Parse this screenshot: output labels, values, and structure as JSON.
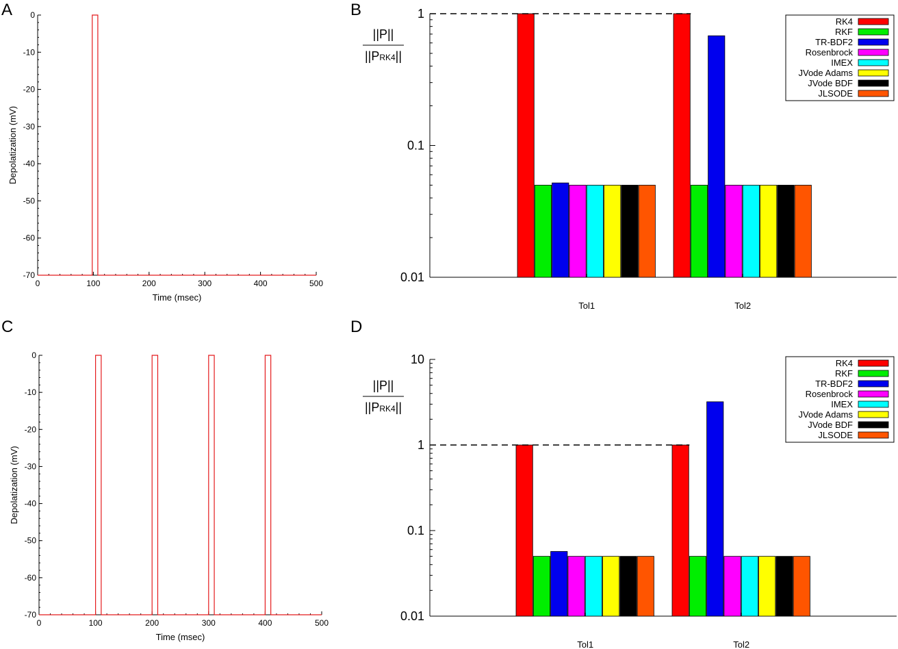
{
  "panels": {
    "A": {
      "letter": "A"
    },
    "B": {
      "letter": "B"
    },
    "C": {
      "letter": "C"
    },
    "D": {
      "letter": "D"
    }
  },
  "chart_data": [
    {
      "id": "A",
      "type": "line",
      "xlabel": "Time (msec)",
      "ylabel": "Depolatization (mV)",
      "xlim": [
        0,
        500
      ],
      "ylim": [
        -70,
        0
      ],
      "xticks": [
        "0",
        "100",
        "200",
        "300",
        "400",
        "500"
      ],
      "yticks": [
        "0",
        "-10",
        "-20",
        "-30",
        "-40",
        "-50",
        "-60",
        "-70"
      ],
      "series_color": "#e41a1c",
      "pulses": [
        [
          98,
          108
        ]
      ],
      "baseline": -70,
      "peak": 0
    },
    {
      "id": "B",
      "type": "bar",
      "yscale": "log",
      "ylim": [
        0.01,
        1
      ],
      "yticks": [
        "0.01",
        "0.1",
        "1"
      ],
      "ylabel_top": "||P||",
      "ylabel_bottom": "||P",
      "ylabel_sub": "RK4",
      "ylabel_end": "||",
      "reference_line": 1,
      "categories": [
        "Tol1",
        "Tol2"
      ],
      "legend_position": "top-right",
      "series": [
        {
          "name": "RK4",
          "color": "#ff0000",
          "values": [
            1.0,
            1.0
          ]
        },
        {
          "name": "RKF",
          "color": "#00ee00",
          "values": [
            0.05,
            0.05
          ]
        },
        {
          "name": "TR-BDF2",
          "color": "#0000ee",
          "values": [
            0.052,
            0.68
          ]
        },
        {
          "name": "Rosenbrock",
          "color": "#ff00ff",
          "values": [
            0.05,
            0.05
          ]
        },
        {
          "name": "IMEX",
          "color": "#00ffff",
          "values": [
            0.05,
            0.05
          ]
        },
        {
          "name": "JVode Adams",
          "color": "#ffff00",
          "values": [
            0.05,
            0.05
          ]
        },
        {
          "name": "JVode BDF",
          "color": "#000000",
          "values": [
            0.05,
            0.05
          ]
        },
        {
          "name": "JLSODE",
          "color": "#ff5500",
          "values": [
            0.05,
            0.05
          ]
        }
      ]
    },
    {
      "id": "C",
      "type": "line",
      "xlabel": "Time (msec)",
      "ylabel": "Depolatization (mV)",
      "xlim": [
        0,
        500
      ],
      "ylim": [
        -70,
        0
      ],
      "xticks": [
        "0",
        "100",
        "200",
        "300",
        "400",
        "500"
      ],
      "yticks": [
        "0",
        "-10",
        "-20",
        "-30",
        "-40",
        "-50",
        "-60",
        "-70"
      ],
      "series_color": "#e41a1c",
      "pulses": [
        [
          100,
          110
        ],
        [
          200,
          210
        ],
        [
          300,
          310
        ],
        [
          400,
          410
        ]
      ],
      "baseline": -70,
      "peak": 0
    },
    {
      "id": "D",
      "type": "bar",
      "yscale": "log",
      "ylim": [
        0.01,
        10
      ],
      "yticks": [
        "0.01",
        "0.1",
        "1",
        "10"
      ],
      "ylabel_top": "||P||",
      "ylabel_bottom": "||P",
      "ylabel_sub": "RK4",
      "ylabel_end": "||",
      "reference_line": 1,
      "categories": [
        "Tol1",
        "Tol2"
      ],
      "legend_position": "top-right",
      "series": [
        {
          "name": "RK4",
          "color": "#ff0000",
          "values": [
            1.0,
            1.0
          ]
        },
        {
          "name": "RKF",
          "color": "#00ee00",
          "values": [
            0.05,
            0.05
          ]
        },
        {
          "name": "TR-BDF2",
          "color": "#0000ee",
          "values": [
            0.057,
            3.2
          ]
        },
        {
          "name": "Rosenbrock",
          "color": "#ff00ff",
          "values": [
            0.05,
            0.05
          ]
        },
        {
          "name": "IMEX",
          "color": "#00ffff",
          "values": [
            0.05,
            0.05
          ]
        },
        {
          "name": "JVode Adams",
          "color": "#ffff00",
          "values": [
            0.05,
            0.05
          ]
        },
        {
          "name": "JVode BDF",
          "color": "#000000",
          "values": [
            0.05,
            0.05
          ]
        },
        {
          "name": "JLSODE",
          "color": "#ff5500",
          "values": [
            0.05,
            0.05
          ]
        }
      ]
    }
  ]
}
